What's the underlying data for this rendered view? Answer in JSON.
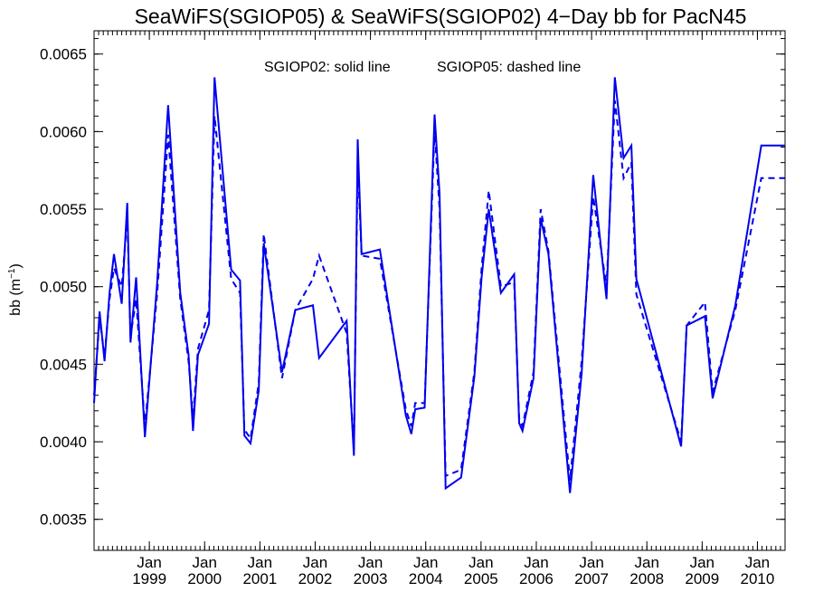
{
  "chart_data": {
    "type": "line",
    "title": "SeaWiFS(SGIOP05) & SeaWiFS(SGIOP02) 4−Day bb for PacN45",
    "ylabel_main": "bb (m",
    "ylabel_exp": "−1",
    "ylabel_close": ")",
    "xlabel": "",
    "annotation_solid": "SGIOP02: solid line",
    "annotation_dashed": "SGIOP05: dashed line",
    "ylim": [
      0.0033,
      0.00665
    ],
    "xlim": [
      1998.0,
      2010.5
    ],
    "y_ticks": [
      {
        "value": 0.0035,
        "label": "0.0035"
      },
      {
        "value": 0.004,
        "label": "0.0040"
      },
      {
        "value": 0.0045,
        "label": "0.0045"
      },
      {
        "value": 0.005,
        "label": "0.0050"
      },
      {
        "value": 0.0055,
        "label": "0.0055"
      },
      {
        "value": 0.006,
        "label": "0.0060"
      },
      {
        "value": 0.0065,
        "label": "0.0065"
      }
    ],
    "x_ticks": [
      {
        "value": 1999.0,
        "month": "Jan",
        "year": "1999"
      },
      {
        "value": 2000.0,
        "month": "Jan",
        "year": "2000"
      },
      {
        "value": 2001.0,
        "month": "Jan",
        "year": "2001"
      },
      {
        "value": 2002.0,
        "month": "Jan",
        "year": "2002"
      },
      {
        "value": 2003.0,
        "month": "Jan",
        "year": "2003"
      },
      {
        "value": 2004.0,
        "month": "Jan",
        "year": "2004"
      },
      {
        "value": 2005.0,
        "month": "Jan",
        "year": "2005"
      },
      {
        "value": 2006.0,
        "month": "Jan",
        "year": "2006"
      },
      {
        "value": 2007.0,
        "month": "Jan",
        "year": "2007"
      },
      {
        "value": 2008.0,
        "month": "Jan",
        "year": "2008"
      },
      {
        "value": 2009.0,
        "month": "Jan",
        "year": "2009"
      },
      {
        "value": 2010.0,
        "month": "Jan",
        "year": "2010"
      }
    ],
    "grid": false,
    "series": [
      {
        "name": "SGIOP02",
        "style": "solid",
        "color": "#0000ee",
        "x": [
          1998.0,
          1998.1,
          1998.19,
          1998.28,
          1998.36,
          1998.5,
          1998.6,
          1998.66,
          1998.76,
          1998.92,
          1999.14,
          1999.34,
          1999.56,
          1999.71,
          1999.79,
          1999.88,
          2000.08,
          2000.18,
          2000.48,
          2000.64,
          2000.72,
          2000.83,
          2000.98,
          2001.07,
          2001.4,
          2001.64,
          2001.96,
          2002.07,
          2002.57,
          2002.7,
          2002.77,
          2002.84,
          2003.17,
          2003.64,
          2003.74,
          2003.81,
          2003.98,
          2004.16,
          2004.25,
          2004.36,
          2004.64,
          2004.88,
          2005.01,
          2005.14,
          2005.36,
          2005.6,
          2005.69,
          2005.75,
          2005.95,
          2006.08,
          2006.22,
          2006.61,
          2006.82,
          2007.03,
          2007.27,
          2007.42,
          2007.58,
          2007.72,
          2007.81,
          2008.62,
          2008.72,
          2009.05,
          2009.19,
          2009.6,
          2010.07,
          2010.41,
          2010.49
        ],
        "values": [
          0.00425,
          0.00484,
          0.00452,
          0.00496,
          0.00521,
          0.00489,
          0.00554,
          0.00464,
          0.00506,
          0.00403,
          0.00502,
          0.00617,
          0.00496,
          0.00456,
          0.00407,
          0.00456,
          0.00476,
          0.00635,
          0.00511,
          0.00504,
          0.00404,
          0.00399,
          0.00433,
          0.00528,
          0.00445,
          0.00485,
          0.00488,
          0.00454,
          0.00478,
          0.00391,
          0.00595,
          0.00521,
          0.00524,
          0.00417,
          0.00405,
          0.00421,
          0.00422,
          0.00611,
          0.0056,
          0.0037,
          0.00377,
          0.00442,
          0.00506,
          0.0055,
          0.00496,
          0.00508,
          0.00412,
          0.00407,
          0.00441,
          0.00544,
          0.00521,
          0.00367,
          0.00444,
          0.00572,
          0.00492,
          0.00635,
          0.00583,
          0.00591,
          0.00505,
          0.00397,
          0.00475,
          0.00481,
          0.00428,
          0.00488,
          0.00591,
          0.00591,
          0.00591
        ]
      },
      {
        "name": "SGIOP05",
        "style": "dashed",
        "color": "#0000ee",
        "x": [
          1998.0,
          1998.1,
          1998.19,
          1998.28,
          1998.36,
          1998.5,
          1998.6,
          1998.66,
          1998.76,
          1998.92,
          1999.14,
          1999.34,
          1999.56,
          1999.71,
          1999.79,
          1999.88,
          2000.08,
          2000.18,
          2000.48,
          2000.64,
          2000.72,
          2000.83,
          2000.98,
          2001.07,
          2001.4,
          2001.64,
          2001.96,
          2002.07,
          2002.57,
          2002.7,
          2002.77,
          2002.84,
          2003.17,
          2003.64,
          2003.74,
          2003.81,
          2003.98,
          2004.16,
          2004.25,
          2004.36,
          2004.64,
          2004.88,
          2005.01,
          2005.14,
          2005.36,
          2005.6,
          2005.69,
          2005.75,
          2005.95,
          2006.08,
          2006.22,
          2006.61,
          2006.82,
          2007.03,
          2007.27,
          2007.42,
          2007.58,
          2007.72,
          2007.81,
          2008.62,
          2008.72,
          2009.05,
          2009.19,
          2009.6,
          2010.07,
          2010.41,
          2010.49
        ],
        "values": [
          0.0043,
          0.0048,
          0.00455,
          0.00492,
          0.00512,
          0.005,
          0.00545,
          0.00468,
          0.00492,
          0.0041,
          0.00495,
          0.00598,
          0.00492,
          0.00452,
          0.00415,
          0.0046,
          0.00485,
          0.0061,
          0.00505,
          0.00496,
          0.00408,
          0.00402,
          0.00438,
          0.00534,
          0.00441,
          0.00485,
          0.00505,
          0.0052,
          0.0047,
          0.00395,
          0.00582,
          0.0052,
          0.00518,
          0.00421,
          0.0041,
          0.00425,
          0.00425,
          0.00601,
          0.0055,
          0.00378,
          0.00382,
          0.00445,
          0.00512,
          0.00562,
          0.005,
          0.00503,
          0.00415,
          0.0041,
          0.00445,
          0.0055,
          0.00523,
          0.00375,
          0.00452,
          0.00558,
          0.005,
          0.0062,
          0.0057,
          0.0058,
          0.00495,
          0.004,
          0.00475,
          0.0049,
          0.00432,
          0.00485,
          0.0057,
          0.0057,
          0.0057
        ]
      }
    ]
  }
}
